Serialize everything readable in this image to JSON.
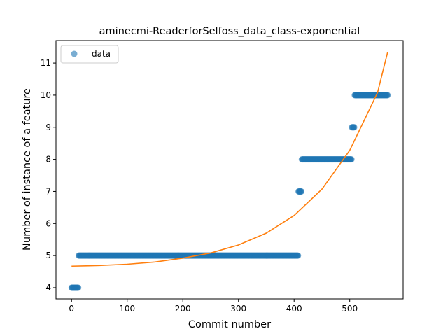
{
  "chart_data": {
    "type": "scatter",
    "title": "aminecmi-ReaderforSelfoss_data_class-exponential",
    "xlabel": "Commit number",
    "ylabel": "Number of instance of a feature",
    "xlim": [
      -28,
      596
    ],
    "ylim": [
      3.65,
      11.7
    ],
    "xticks": [
      0,
      100,
      200,
      300,
      400,
      500
    ],
    "yticks": [
      4,
      5,
      6,
      7,
      8,
      9,
      10,
      11
    ],
    "legend": {
      "placement": "top-left",
      "entries": [
        "data"
      ]
    },
    "colors": {
      "data": "#1f77b4",
      "fit": "#ff7f0e"
    },
    "series": [
      {
        "name": "data",
        "kind": "scatter",
        "segments": [
          {
            "x_start": 0,
            "x_end": 12,
            "y": 4
          },
          {
            "x_start": 13,
            "x_end": 407,
            "y": 5
          },
          {
            "x_start": 408,
            "x_end": 413,
            "y": 7
          },
          {
            "x_start": 414,
            "x_end": 503,
            "y": 8
          },
          {
            "x_start": 504,
            "x_end": 508,
            "y": 9
          },
          {
            "x_start": 509,
            "x_end": 568,
            "y": 10
          }
        ]
      },
      {
        "kind": "line",
        "x": [
          0,
          50,
          100,
          150,
          200,
          250,
          300,
          350,
          400,
          450,
          500,
          550,
          568
        ],
        "y": [
          4.67,
          4.69,
          4.73,
          4.8,
          4.92,
          5.08,
          5.33,
          5.7,
          6.25,
          7.07,
          8.28,
          10.08,
          11.33
        ]
      }
    ]
  }
}
